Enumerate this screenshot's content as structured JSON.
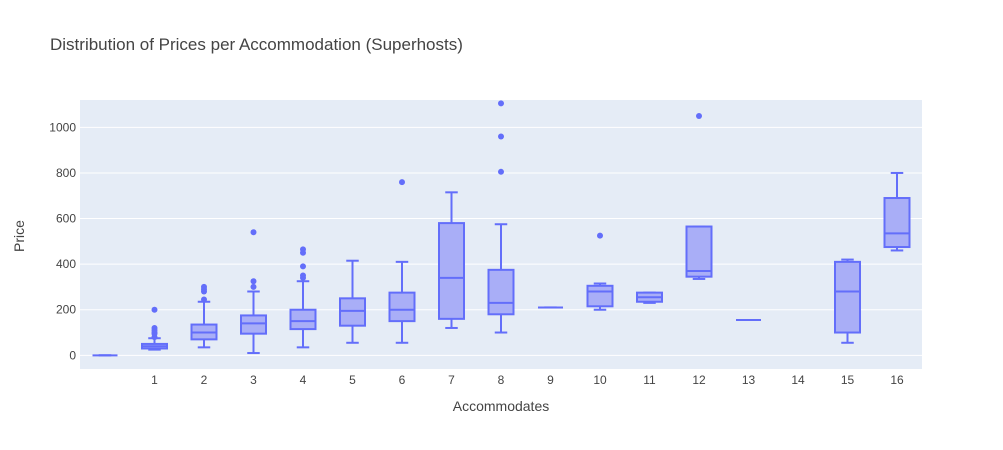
{
  "chart_data": {
    "type": "box",
    "title": "Distribution of Prices per Accommodation (Superhosts)",
    "xlabel": "Accommodates",
    "ylabel": "Price",
    "ylim": [
      -60,
      1120
    ],
    "y_ticks": [
      0,
      200,
      400,
      600,
      800,
      1000
    ],
    "grid": true,
    "colors": {
      "box_line": "#636efa",
      "box_fill": "#a9aef7",
      "plot_bg": "#e5ecf6",
      "grid": "#ffffff",
      "text": "#444444"
    },
    "categories": [
      "0",
      "1",
      "2",
      "3",
      "4",
      "5",
      "6",
      "7",
      "8",
      "9",
      "10",
      "11",
      "12",
      "13",
      "14",
      "15",
      "16"
    ],
    "x_tick_labels": [
      "",
      "1",
      "2",
      "3",
      "4",
      "5",
      "6",
      "7",
      "8",
      "9",
      "10",
      "11",
      "12",
      "13",
      "14",
      "15",
      "16"
    ],
    "boxes": [
      {
        "category": "0",
        "min": 0,
        "q1": 0,
        "median": 0,
        "q3": 0,
        "max": 0,
        "outliers": []
      },
      {
        "category": "1",
        "min": 25,
        "q1": 30,
        "median": 40,
        "q3": 50,
        "max": 75,
        "outliers": [
          80,
          95,
          100,
          110,
          120,
          200
        ]
      },
      {
        "category": "2",
        "min": 35,
        "q1": 70,
        "median": 100,
        "q3": 135,
        "max": 235,
        "outliers": [
          245,
          280,
          290,
          300
        ]
      },
      {
        "category": "3",
        "min": 10,
        "q1": 95,
        "median": 140,
        "q3": 175,
        "max": 280,
        "outliers": [
          300,
          325,
          540
        ]
      },
      {
        "category": "4",
        "min": 35,
        "q1": 115,
        "median": 150,
        "q3": 200,
        "max": 325,
        "outliers": [
          340,
          350,
          390,
          450,
          465
        ]
      },
      {
        "category": "5",
        "min": 55,
        "q1": 130,
        "median": 195,
        "q3": 250,
        "max": 415,
        "outliers": []
      },
      {
        "category": "6",
        "min": 55,
        "q1": 150,
        "median": 200,
        "q3": 275,
        "max": 410,
        "outliers": [
          760
        ]
      },
      {
        "category": "7",
        "min": 120,
        "q1": 160,
        "median": 340,
        "q3": 580,
        "max": 715,
        "outliers": []
      },
      {
        "category": "8",
        "min": 100,
        "q1": 180,
        "median": 230,
        "q3": 375,
        "max": 575,
        "outliers": [
          805,
          960,
          1105
        ]
      },
      {
        "category": "9",
        "min": 210,
        "q1": 210,
        "median": 210,
        "q3": 210,
        "max": 210,
        "outliers": []
      },
      {
        "category": "10",
        "min": 200,
        "q1": 215,
        "median": 280,
        "q3": 305,
        "max": 315,
        "outliers": [
          525
        ]
      },
      {
        "category": "11",
        "min": 230,
        "q1": 235,
        "median": 255,
        "q3": 275,
        "max": 275,
        "outliers": []
      },
      {
        "category": "12",
        "min": 335,
        "q1": 345,
        "median": 370,
        "q3": 565,
        "max": 565,
        "outliers": [
          1050
        ]
      },
      {
        "category": "13",
        "min": 155,
        "q1": 155,
        "median": 155,
        "q3": 155,
        "max": 155,
        "outliers": []
      },
      {
        "category": "15",
        "min": 55,
        "q1": 100,
        "median": 280,
        "q3": 410,
        "max": 420,
        "outliers": []
      },
      {
        "category": "16",
        "min": 460,
        "q1": 475,
        "median": 535,
        "q3": 690,
        "max": 800,
        "outliers": []
      }
    ]
  }
}
